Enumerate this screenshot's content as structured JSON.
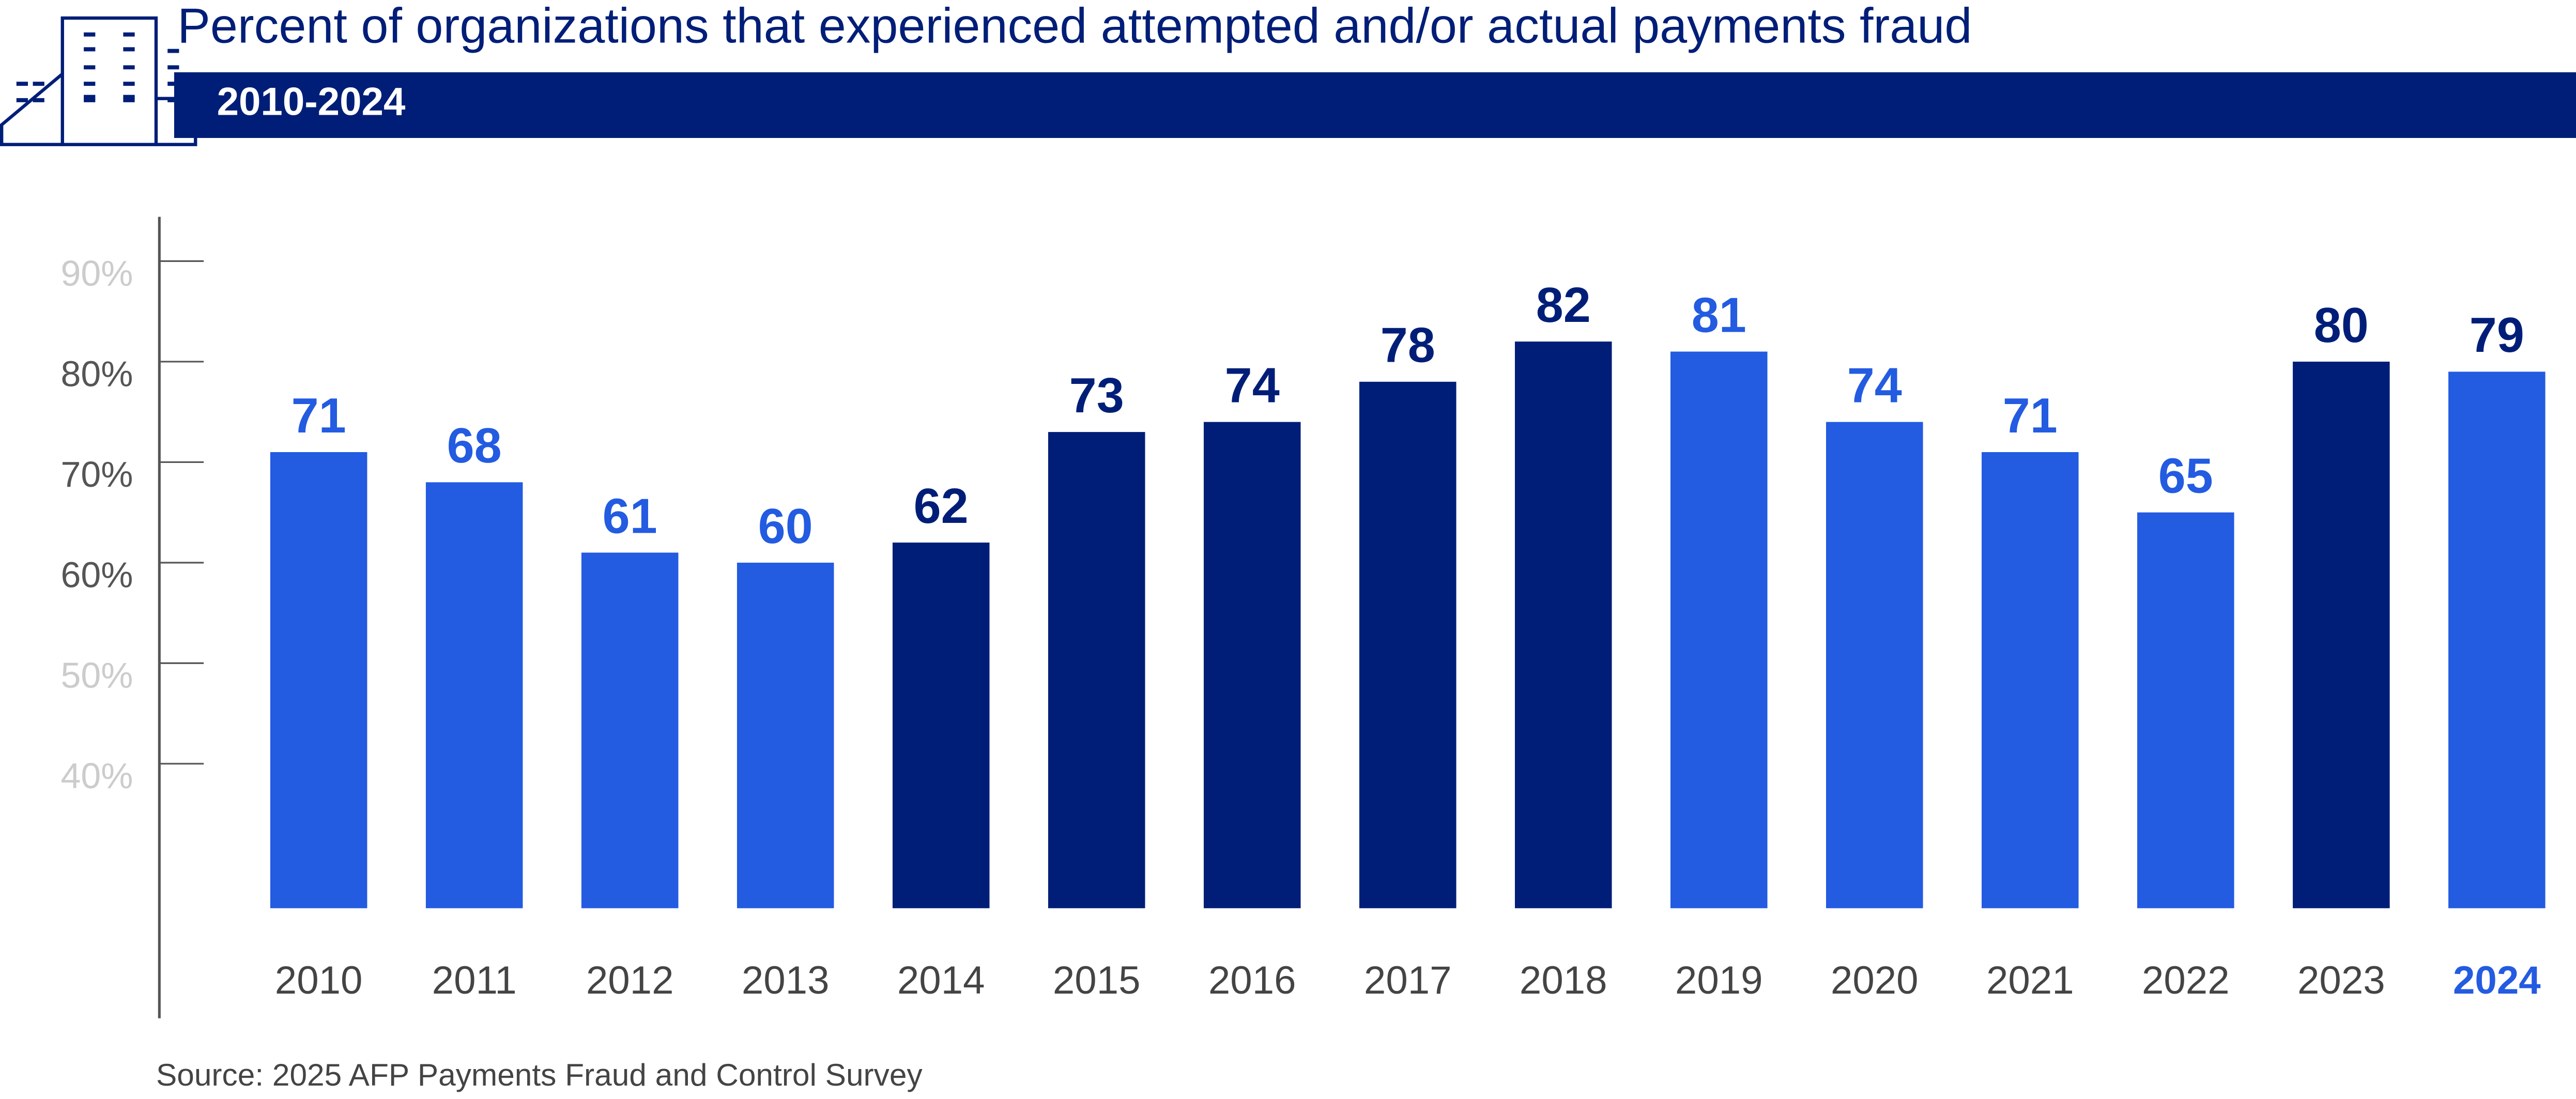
{
  "header": {
    "title": "Percent of organizations that experienced attempted and/or actual payments fraud",
    "subtitle_band": "2010-2024",
    "icon": "office-building-icon"
  },
  "source": "Source: 2025 AFP Payments Fraud and Control Survey",
  "colors": {
    "bright_blue": "#235BE1",
    "navy": "#001E78",
    "axis": "#555555",
    "tick_light": "#CCCCCC",
    "tick_dark": "#555555"
  },
  "chart_data": {
    "type": "bar",
    "title": "Percent of organizations that experienced attempted and/or actual payments fraud",
    "subtitle": "2010-2024",
    "categories": [
      "2010",
      "2011",
      "2012",
      "2013",
      "2014",
      "2015",
      "2016",
      "2017",
      "2018",
      "2019",
      "2020",
      "2021",
      "2022",
      "2023",
      "2024"
    ],
    "values": [
      71,
      68,
      61,
      60,
      62,
      73,
      74,
      78,
      82,
      81,
      74,
      71,
      65,
      80,
      79
    ],
    "bar_colors": [
      "#235BE1",
      "#235BE1",
      "#235BE1",
      "#235BE1",
      "#001E78",
      "#001E78",
      "#001E78",
      "#001E78",
      "#001E78",
      "#235BE1",
      "#235BE1",
      "#235BE1",
      "#235BE1",
      "#001E78",
      "#235BE1"
    ],
    "label_colors": [
      "#235BE1",
      "#235BE1",
      "#235BE1",
      "#235BE1",
      "#001E78",
      "#001E78",
      "#001E78",
      "#001E78",
      "#001E78",
      "#235BE1",
      "#235BE1",
      "#235BE1",
      "#235BE1",
      "#001E78",
      "#001E78"
    ],
    "yticks": [
      {
        "value": 90,
        "label": "90%",
        "color": "#CCCCCC"
      },
      {
        "value": 80,
        "label": "80%",
        "color": "#555555"
      },
      {
        "value": 70,
        "label": "70%",
        "color": "#555555"
      },
      {
        "value": 60,
        "label": "60%",
        "color": "#555555"
      },
      {
        "value": 50,
        "label": "50%",
        "color": "#CCCCCC"
      },
      {
        "value": 40,
        "label": "40%",
        "color": "#CCCCCC"
      }
    ],
    "highlight_category": "2024",
    "xlabel": "",
    "ylabel": "",
    "grid": false,
    "legend": "none"
  }
}
